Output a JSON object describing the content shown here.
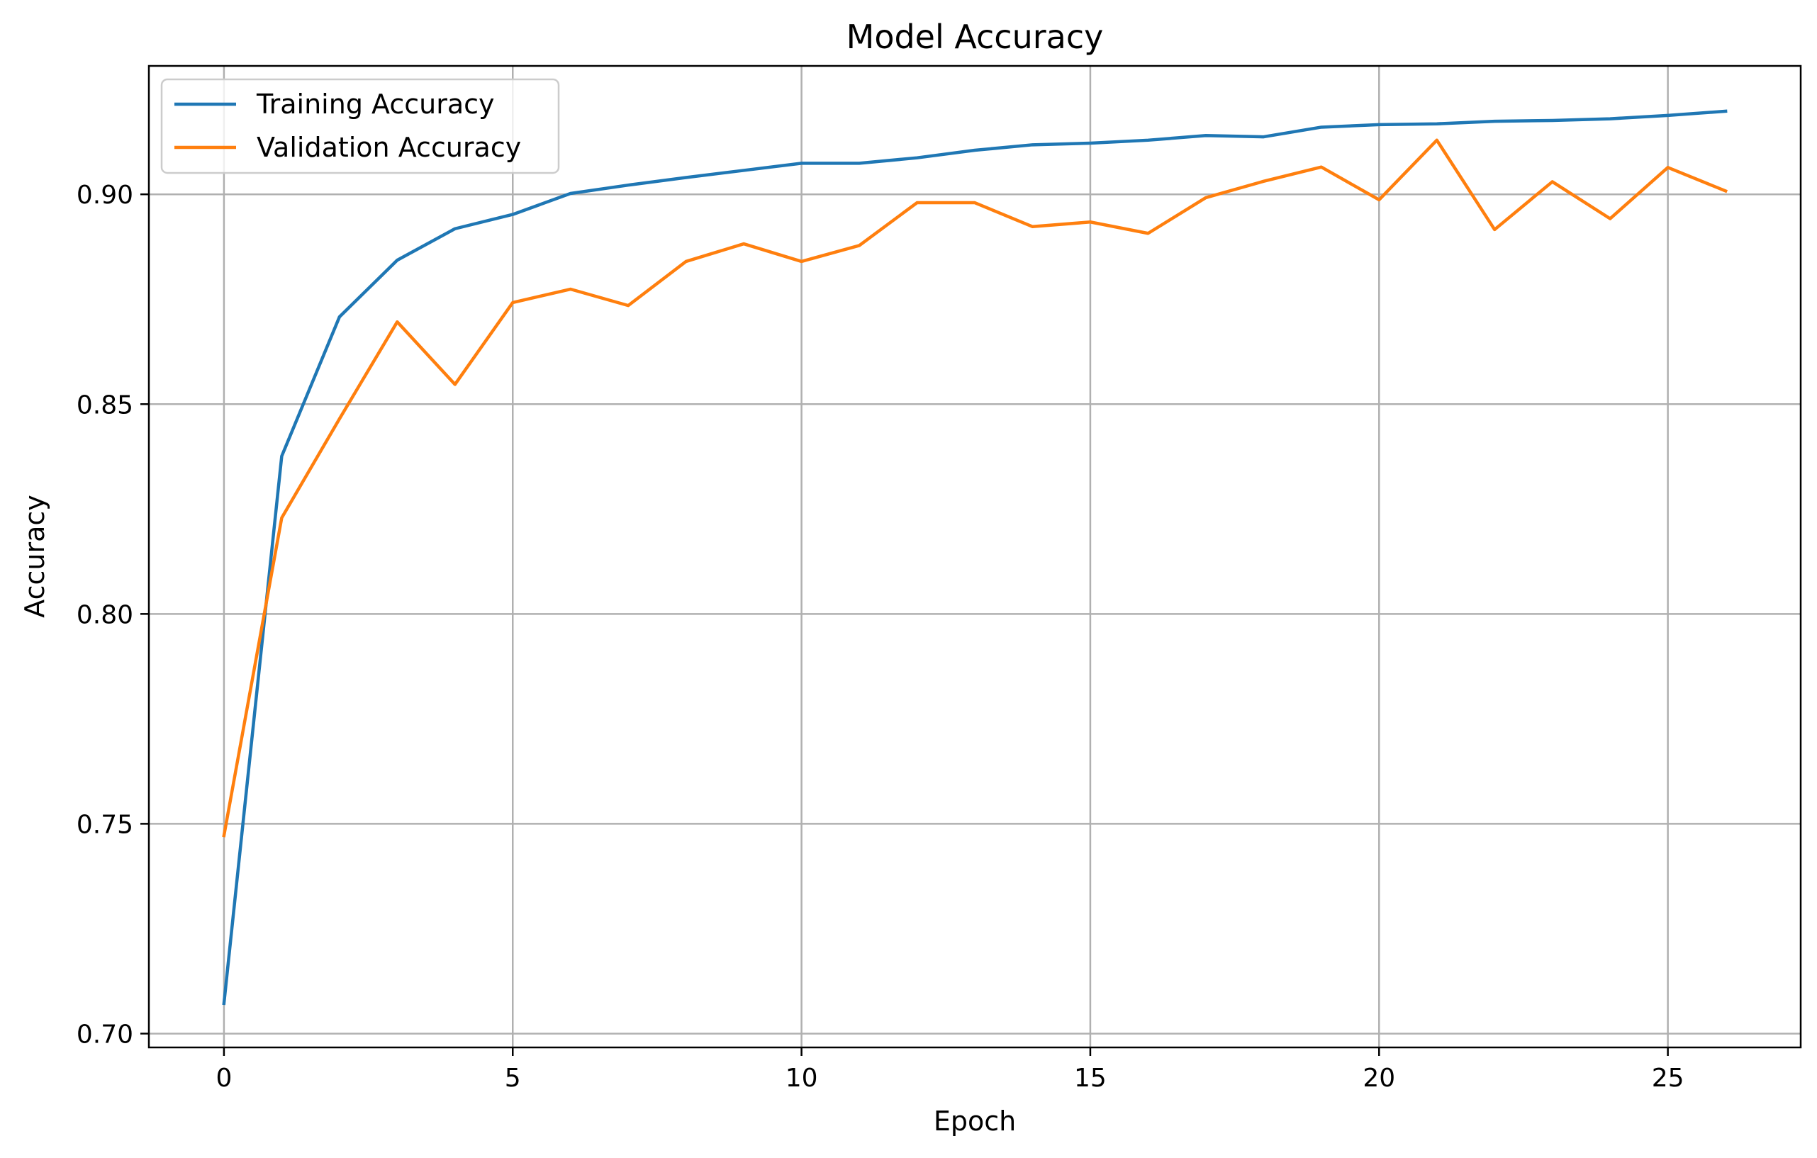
{
  "chart_data": {
    "type": "line",
    "title": "Model Accuracy",
    "xlabel": "Epoch",
    "ylabel": "Accuracy",
    "x": [
      0,
      1,
      2,
      3,
      4,
      5,
      6,
      7,
      8,
      9,
      10,
      11,
      12,
      13,
      14,
      15,
      16,
      17,
      18,
      19,
      20,
      21,
      22,
      23,
      24,
      25,
      26
    ],
    "xlim": [
      -1.3,
      27.3
    ],
    "ylim": [
      0.6967,
      0.9306
    ],
    "xticks": [
      0,
      5,
      10,
      15,
      20,
      25
    ],
    "xtick_labels": [
      "0",
      "5",
      "10",
      "15",
      "20",
      "25"
    ],
    "yticks": [
      0.7,
      0.75,
      0.8,
      0.85,
      0.9
    ],
    "ytick_labels": [
      "0.70",
      "0.75",
      "0.80",
      "0.85",
      "0.90"
    ],
    "grid": true,
    "legend_position": "top-left",
    "series": [
      {
        "name": "Training Accuracy",
        "color": "#1f77b4",
        "values": [
          0.7072,
          0.8376,
          0.8708,
          0.8843,
          0.8918,
          0.8952,
          0.9002,
          0.9022,
          0.904,
          0.9057,
          0.9074,
          0.9074,
          0.9087,
          0.9105,
          0.9118,
          0.9122,
          0.9129,
          0.914,
          0.9137,
          0.916,
          0.9166,
          0.9168,
          0.9174,
          0.9176,
          0.918,
          0.9188,
          0.9198
        ]
      },
      {
        "name": "Validation Accuracy",
        "color": "#ff7f0e",
        "values": [
          0.7472,
          0.8229,
          0.8465,
          0.8696,
          0.8547,
          0.8742,
          0.8774,
          0.8735,
          0.884,
          0.8882,
          0.884,
          0.8878,
          0.898,
          0.898,
          0.8923,
          0.8934,
          0.8907,
          0.8992,
          0.9031,
          0.9065,
          0.8987,
          0.9129,
          0.8916,
          0.903,
          0.8942,
          0.9064,
          0.9008
        ]
      }
    ]
  }
}
